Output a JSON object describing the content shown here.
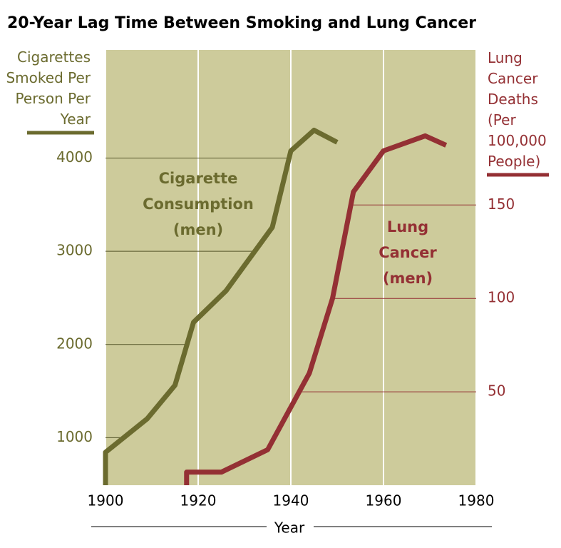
{
  "chart_data": {
    "type": "line",
    "title": "20-Year Lag Time Between Smoking and Lung Cancer",
    "xlabel": "Year",
    "ylabel": "Cigarettes Smoked Per Person Per Year",
    "y2label": "Lung Cancer Deaths (Per 100,000 People)",
    "xlim": [
      1900,
      1980
    ],
    "xticks": [
      1900,
      1920,
      1940,
      1960,
      1980
    ],
    "ylim": [
      490,
      5160
    ],
    "yticks": [
      1000,
      2000,
      3000,
      4000
    ],
    "y2lim": [
      0,
      233
    ],
    "y2ticks": [
      50,
      100,
      150
    ],
    "background": "#cdcb9b",
    "grid_color": "#ffffff",
    "series": [
      {
        "name": "Cigarette Consumption (men)",
        "color": "#6b6b2f",
        "axis": "y",
        "x": [
          1900,
          1900,
          1909,
          1915,
          1919,
          1926,
          1936,
          1940,
          1945,
          1950
        ],
        "values": [
          490,
          843,
          1203,
          1563,
          2238,
          2575,
          3257,
          4077,
          4299,
          4169
        ]
      },
      {
        "name": "Lung Cancer (men)",
        "color": "#943034",
        "axis": "y2",
        "x": [
          1917.5,
          1917.5,
          1925,
          1935,
          1944,
          1949,
          1953.5,
          1960,
          1969,
          1973.5
        ],
        "values": [
          0,
          7,
          7,
          19,
          60,
          100,
          157,
          179,
          187,
          182
        ]
      }
    ]
  }
}
